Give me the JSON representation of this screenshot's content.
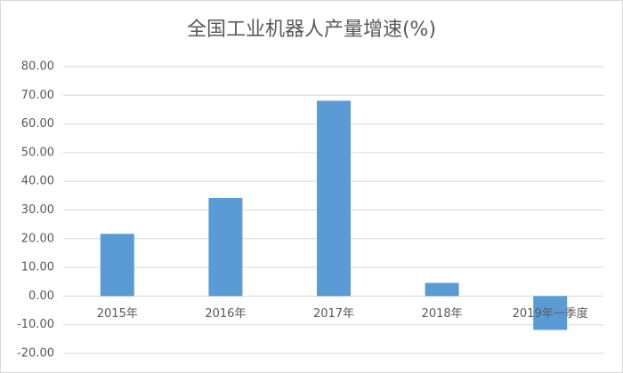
{
  "chart_data": {
    "type": "bar",
    "title": "全国工业机器人产量增速(%)",
    "categories": [
      "2015年",
      "2016年",
      "2017年",
      "2018年",
      "2019年一季度"
    ],
    "values": [
      21.7,
      34.2,
      68.1,
      4.6,
      -11.8
    ],
    "color": "#5b9bd5",
    "ylim": [
      -20,
      80
    ],
    "yticks": [
      {
        "value": -20,
        "label": "-20.00"
      },
      {
        "value": -10,
        "label": "-10.00"
      },
      {
        "value": 0,
        "label": "0.00"
      },
      {
        "value": 10,
        "label": "10.00"
      },
      {
        "value": 20,
        "label": "20.00"
      },
      {
        "value": 30,
        "label": "30.00"
      },
      {
        "value": 40,
        "label": "40.00"
      },
      {
        "value": 50,
        "label": "50.00"
      },
      {
        "value": 60,
        "label": "60.00"
      },
      {
        "value": 70,
        "label": "70.00"
      },
      {
        "value": 80,
        "label": "80.00"
      }
    ],
    "grid": true
  }
}
